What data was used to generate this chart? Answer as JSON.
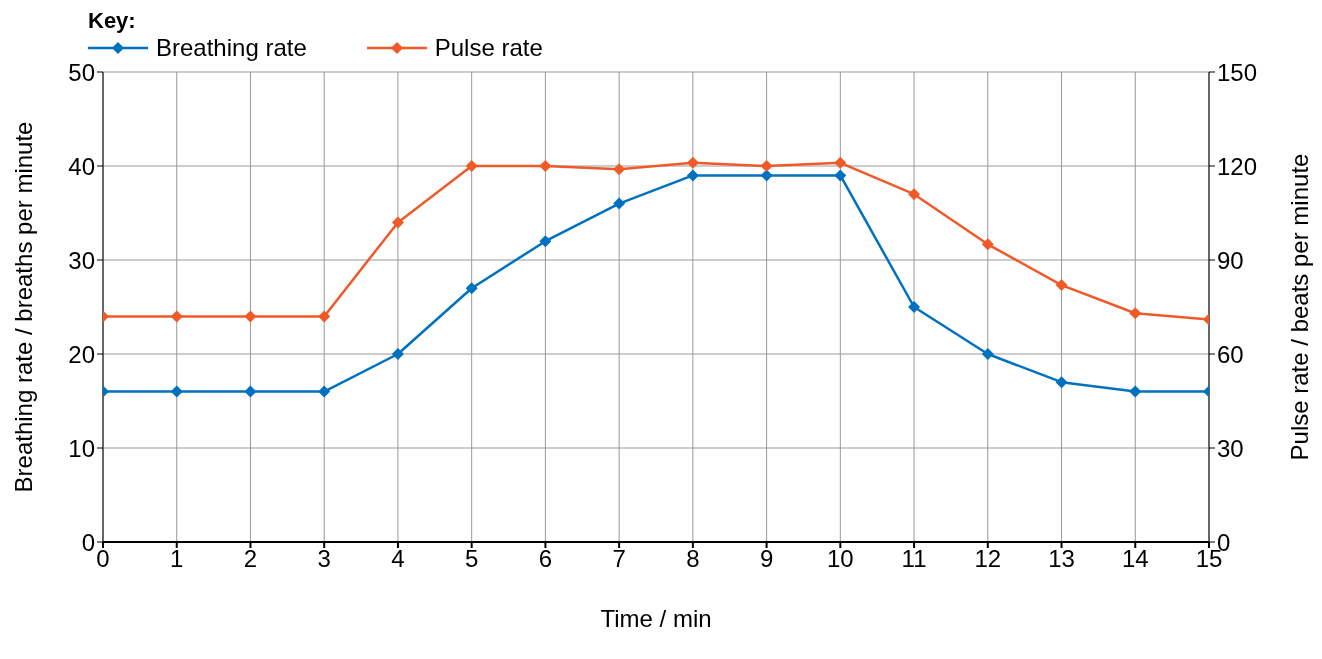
{
  "chart_data": {
    "type": "line",
    "xlabel": "Time / min",
    "ylabel": "Breathing rate / breaths per minute",
    "y2label": "Pulse rate / beats per minute",
    "legend_title": "Key:",
    "x": [
      0,
      1,
      2,
      3,
      4,
      5,
      6,
      7,
      8,
      9,
      10,
      11,
      12,
      13,
      14,
      15
    ],
    "series": [
      {
        "name": "Breathing rate",
        "color": "#0070c0",
        "values": [
          16,
          16,
          16,
          16,
          20,
          27,
          32,
          36,
          39,
          39,
          39,
          25,
          20,
          17,
          16,
          16
        ]
      },
      {
        "name": "Pulse rate",
        "color": "#f05a28",
        "axis": "y2",
        "values": [
          72,
          72,
          72,
          72,
          102,
          120,
          120,
          119,
          121,
          120,
          121,
          111,
          95,
          82,
          73,
          71
        ]
      }
    ],
    "xlim": [
      0,
      15
    ],
    "xticks": [
      0,
      1,
      2,
      3,
      4,
      5,
      6,
      7,
      8,
      9,
      10,
      11,
      12,
      13,
      14,
      15
    ],
    "ylim": [
      0,
      50
    ],
    "yticks": [
      0,
      10,
      20,
      30,
      40,
      50
    ],
    "y2lim": [
      0,
      150
    ],
    "y2ticks": [
      0,
      30,
      60,
      90,
      120,
      150
    ],
    "grid": true,
    "legend": "top left",
    "marker": "diamond",
    "line_style": "solid"
  }
}
